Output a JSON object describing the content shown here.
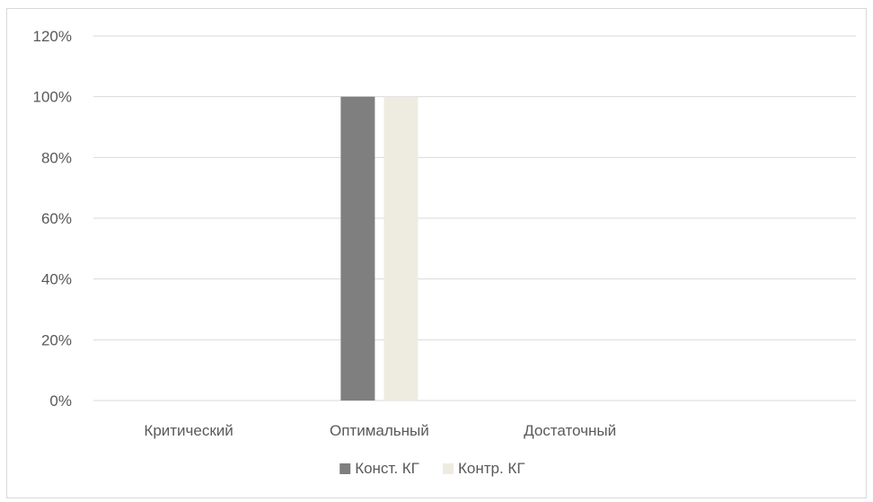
{
  "chart_data": {
    "type": "bar",
    "categories": [
      "Критический",
      "Оптимальный",
      "Достаточный",
      ""
    ],
    "series": [
      {
        "name": "Конст. КГ",
        "values": [
          0,
          100,
          0,
          0
        ],
        "color": "#7f7f7f"
      },
      {
        "name": "Контр. КГ",
        "values": [
          0,
          100,
          0,
          0
        ],
        "color": "#eeece1"
      }
    ],
    "ylim": [
      0,
      120
    ],
    "yticks": [
      0,
      20,
      40,
      60,
      80,
      100,
      120
    ],
    "ytick_format": "percent",
    "grid": true,
    "legend": "bottom-center",
    "title": "",
    "xlabel": "",
    "ylabel": ""
  }
}
